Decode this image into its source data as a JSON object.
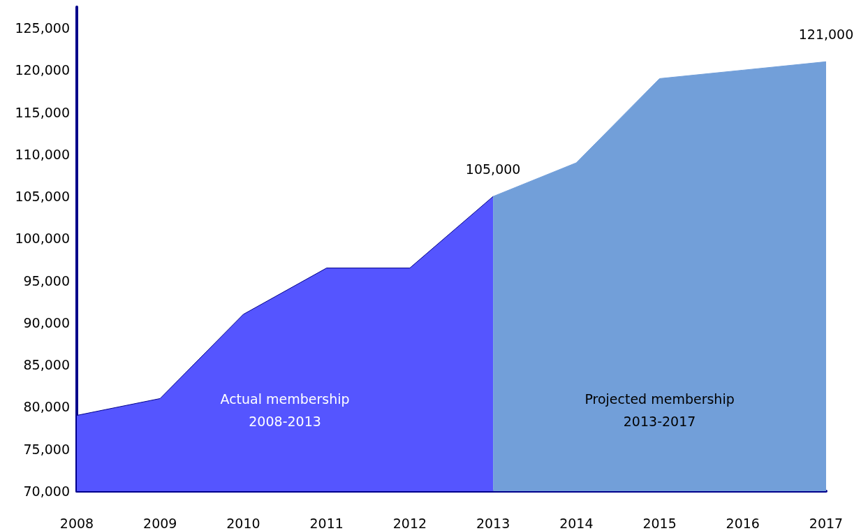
{
  "chart_data": {
    "type": "area",
    "categories": [
      "2008",
      "2009",
      "2010",
      "2011",
      "2012",
      "2013",
      "2014",
      "2015",
      "2016",
      "2017"
    ],
    "series": [
      {
        "name": "Actual membership\n2008-2013",
        "color": "#5555ff",
        "values": [
          79000,
          81000,
          91000,
          96500,
          96500,
          105000,
          null,
          null,
          null,
          null
        ],
        "value_labels": [
          null,
          null,
          null,
          null,
          null,
          "105,000",
          null,
          null,
          null,
          null
        ]
      },
      {
        "name": "Projected membership\n2013-2017",
        "color": "#729fd9",
        "values": [
          null,
          null,
          null,
          null,
          null,
          105000,
          109000,
          119000,
          120000,
          121000
        ],
        "value_labels": [
          null,
          null,
          null,
          null,
          null,
          null,
          null,
          null,
          null,
          "121,000"
        ]
      }
    ],
    "ylim": [
      70000,
      127500
    ],
    "yticks": [
      {
        "value": 70000,
        "label": "70,000"
      },
      {
        "value": 75000,
        "label": "75,000"
      },
      {
        "value": 80000,
        "label": "80,000"
      },
      {
        "value": 85000,
        "label": "85,000"
      },
      {
        "value": 90000,
        "label": "90,000"
      },
      {
        "value": 95000,
        "label": "95,000"
      },
      {
        "value": 100000,
        "label": "100,000"
      },
      {
        "value": 105000,
        "label": "105,000"
      },
      {
        "value": 110000,
        "label": "110,000"
      },
      {
        "value": 115000,
        "label": "115,000"
      },
      {
        "value": 120000,
        "label": "120,000"
      },
      {
        "value": 125000,
        "label": "125,000"
      }
    ],
    "grid": false,
    "legend": false
  }
}
